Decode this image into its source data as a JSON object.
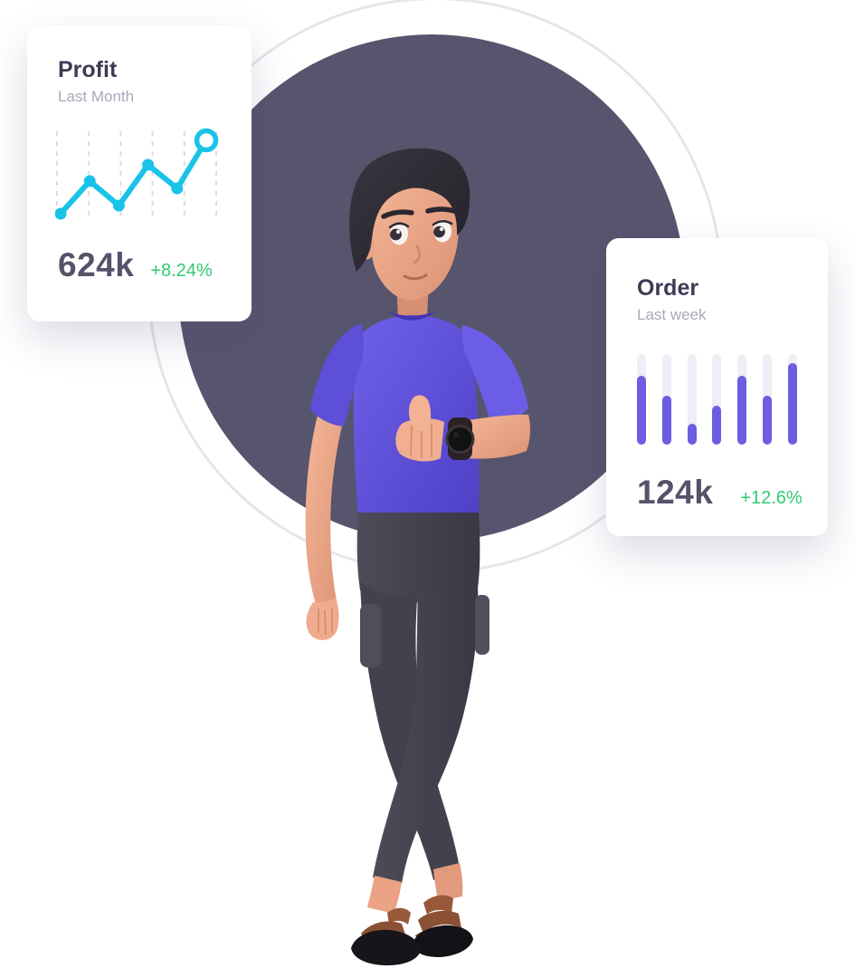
{
  "illustration": {
    "alt": "3D man with dark hair wearing a purple t-shirt, dark pants and brown sandals, giving a thumbs up with a watch on his wrist"
  },
  "colors": {
    "background_circle": "#57546e",
    "outline_ring": "#e6e5ea",
    "accent_cyan": "#19c3e8",
    "accent_purple": "#6c5de2",
    "bar_track": "#efeef6",
    "positive_green": "#31c971",
    "title_dark": "#3e3b55",
    "subtitle_gray": "#a9a8b8",
    "value_dark": "#55536a",
    "shirt_purple": "#5b4fd6",
    "pants_dark": "#45424f"
  },
  "profit_card": {
    "title": "Profit",
    "subtitle": "Last Month",
    "value": "624k",
    "change": "+8.24%"
  },
  "order_card": {
    "title": "Order",
    "subtitle": "Last week",
    "value": "124k",
    "change": "+12.6%"
  },
  "chart_data": [
    {
      "type": "line",
      "card": "profit",
      "title": "Profit",
      "subtitle": "Last Month",
      "values": [
        4,
        40,
        13,
        58,
        32,
        85
      ],
      "ylim": [
        0,
        100
      ],
      "x_count": 6,
      "gridlines": {
        "count": 6,
        "orientation": "vertical",
        "style": "dashed",
        "color": "#dbdbe3"
      },
      "line_color": "#19c3e8",
      "point_style": "filled-dot",
      "last_point_style": "open-ring",
      "summary_value": "624k",
      "summary_change": "+8.24%",
      "axes_labels": "none"
    },
    {
      "type": "bar",
      "card": "order",
      "title": "Order",
      "subtitle": "Last week",
      "values": [
        76,
        54,
        23,
        43,
        76,
        54,
        90
      ],
      "ylim": [
        0,
        100
      ],
      "bar_color": "#6c5de2",
      "track_color": "#efeef6",
      "bar_count": 7,
      "summary_value": "124k",
      "summary_change": "+12.6%",
      "axes_labels": "none"
    }
  ]
}
